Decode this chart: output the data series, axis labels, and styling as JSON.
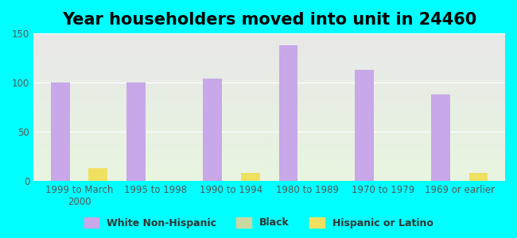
{
  "title": "Year householders moved into unit in 24460",
  "background_color": "#00FFFF",
  "categories": [
    "1999 to March\n2000",
    "1995 to 1998",
    "1990 to 1994",
    "1980 to 1989",
    "1970 to 1979",
    "1969 or earlier"
  ],
  "white_nonhispanic": [
    100,
    100,
    104,
    138,
    113,
    88
  ],
  "black": [
    0,
    0,
    0,
    0,
    0,
    0
  ],
  "hispanic": [
    13,
    0,
    8,
    0,
    0,
    8
  ],
  "white_color": "#c8a8e8",
  "black_color": "#c8d8a0",
  "hispanic_color": "#f0e060",
  "grad_top": "#e8e8e8",
  "grad_bottom": "#e8f5e0",
  "ylim": [
    0,
    150
  ],
  "yticks": [
    0,
    50,
    100,
    150
  ],
  "bar_width": 0.25,
  "title_fontsize": 15,
  "tick_fontsize": 8.5,
  "legend_fontsize": 9
}
